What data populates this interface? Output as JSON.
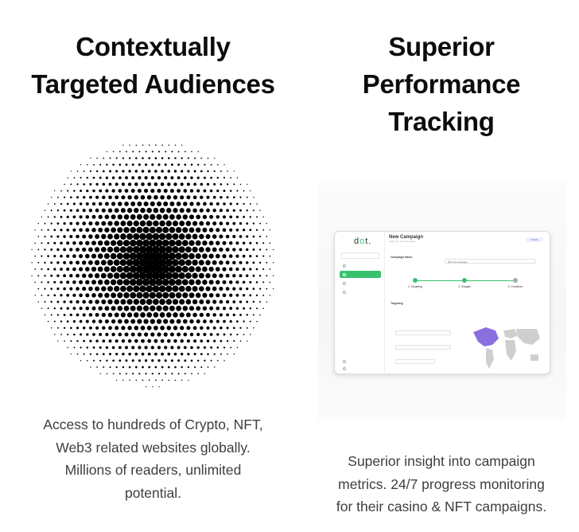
{
  "left": {
    "title_line1": "Contextually",
    "title_line2": "Targeted Audiences",
    "desc_line1": "Access to hundreds of Crypto, NFT,",
    "desc_line2": "Web3 related websites globally.",
    "desc_line3": "Millions of readers, unlimited",
    "desc_line4": "potential.",
    "image": "halftone-dot-sphere"
  },
  "right": {
    "title_line1": "Superior",
    "title_line2": "Performance",
    "title_line3": "Tracking",
    "desc_line1": "Superior insight into campaign",
    "desc_line2": "metrics. 24/7 progress monitoring",
    "desc_line3": "for their casino & NFT campaigns.",
    "mockup": {
      "logo": "d",
      "logo_mid": "o",
      "logo_end": "t.",
      "page_title": "New Campaign",
      "page_sub": "Start your new campaign",
      "publish": "Publish",
      "campaign_name_label": "Campaign Name",
      "campaign_name_value": "NFT Ad Campaign",
      "step1": "1. Targeting",
      "step2": "2. Budget",
      "step3": "3. Creatives",
      "targeting": "Targeting",
      "accent": "#39c26d"
    }
  }
}
